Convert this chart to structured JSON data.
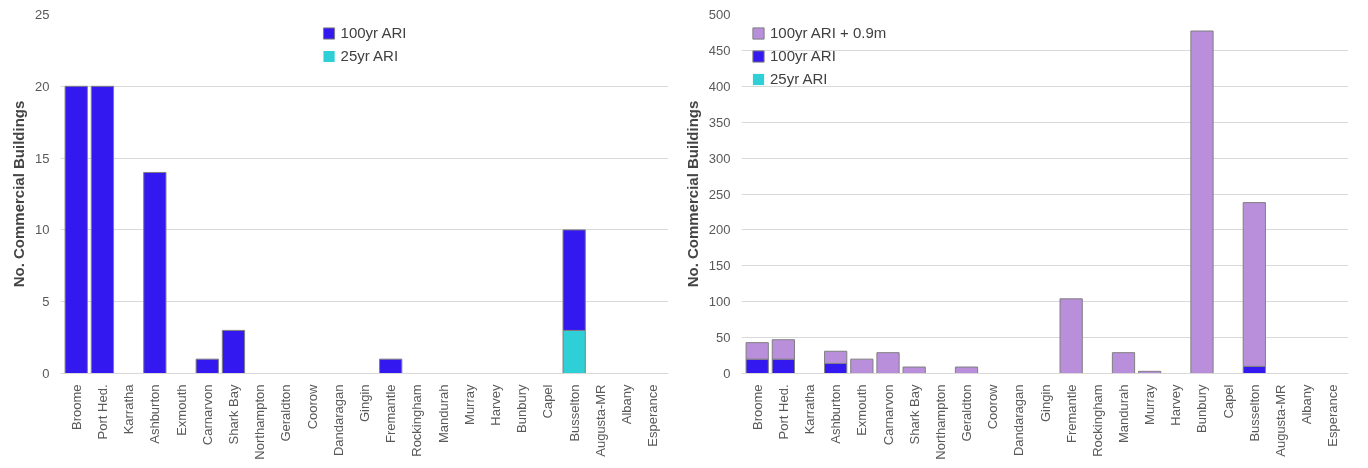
{
  "chart_data": [
    {
      "type": "bar",
      "stacked": true,
      "ylabel": "No. Commercial Buildings",
      "ylim": [
        0,
        25
      ],
      "yticks": [
        0,
        5,
        10,
        15,
        20,
        25
      ],
      "grid": "y",
      "legend": "top",
      "categories": [
        "Broome",
        "Port Hed.",
        "Karratha",
        "Ashburton",
        "Exmouth",
        "Carnarvon",
        "Shark Bay",
        "Northampton",
        "Geraldton",
        "Coorow",
        "Dandaragan",
        "Gingin",
        "Fremantle",
        "Rockingham",
        "Mandurah",
        "Murray",
        "Harvey",
        "Bunbury",
        "Capel",
        "Busselton",
        "Augusta-MR",
        "Albany",
        "Esperance"
      ],
      "series": [
        {
          "name": "25yr ARI",
          "color": "#2ecfd6",
          "values": [
            0,
            0,
            0,
            0,
            0,
            0,
            0,
            0,
            0,
            0,
            0,
            0,
            0,
            0,
            0,
            0,
            0,
            0,
            0,
            3,
            0,
            0,
            0
          ]
        },
        {
          "name": "100yr ARI",
          "color": "#3318f0",
          "values": [
            20,
            20,
            0,
            14,
            0,
            1,
            3,
            0,
            0,
            0,
            0,
            0,
            1,
            0,
            0,
            0,
            0,
            0,
            0,
            7,
            0,
            0,
            0
          ]
        }
      ]
    },
    {
      "type": "bar",
      "stacked": true,
      "ylabel": "No. Commercial Buildings",
      "ylim": [
        0,
        500
      ],
      "yticks": [
        0,
        50,
        100,
        150,
        200,
        250,
        300,
        350,
        400,
        450,
        500
      ],
      "grid": "y",
      "legend": "top left",
      "categories": [
        "Broome",
        "Port Hed.",
        "Karratha",
        "Ashburton",
        "Exmouth",
        "Carnarvon",
        "Shark Bay",
        "Northampton",
        "Geraldton",
        "Coorow",
        "Dandaragan",
        "Gingin",
        "Fremantle",
        "Rockingham",
        "Mandurah",
        "Murray",
        "Harvey",
        "Bunbury",
        "Capel",
        "Busselton",
        "Augusta-MR",
        "Albany",
        "Esperance"
      ],
      "series": [
        {
          "name": "25yr ARI",
          "color": "#2ecfd6",
          "values": [
            0,
            0,
            0,
            0,
            0,
            0,
            0,
            0,
            0,
            0,
            0,
            0,
            0,
            0,
            0,
            0,
            0,
            0,
            0,
            null,
            0,
            0,
            0
          ]
        },
        {
          "name": "100yr ARI",
          "color": "#3318f0",
          "values": [
            20,
            20,
            0,
            14,
            0,
            null,
            null,
            0,
            0,
            0,
            0,
            0,
            null,
            0,
            0,
            0,
            0,
            0,
            0,
            10,
            0,
            0,
            0
          ]
        },
        {
          "name": "100yr ARI + 0.9m",
          "color": "#b98fdc",
          "values": [
            23,
            27,
            0,
            17,
            20,
            29,
            9,
            0,
            9,
            0,
            0,
            0,
            104,
            0,
            29,
            3,
            0,
            477,
            0,
            228,
            0,
            0,
            0
          ]
        }
      ]
    }
  ]
}
